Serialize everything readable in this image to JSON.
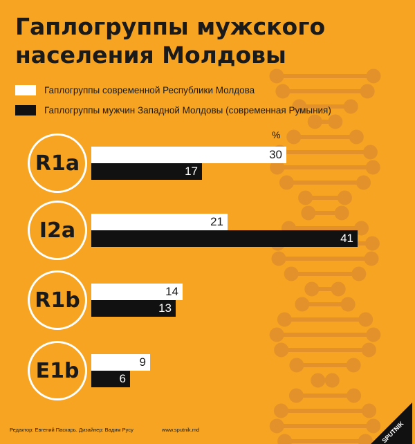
{
  "title_line1": "Гаплогруппы мужского",
  "title_line2": "населения Молдовы",
  "legend": [
    {
      "label": "Гаплогруппы современной Республики Молдова",
      "color": "#ffffff"
    },
    {
      "label": "Гаплогруппы мужчин Западной Молдовы (современная Румыния)",
      "color": "#111111"
    }
  ],
  "unit": "%",
  "chart_data": {
    "type": "bar",
    "orientation": "horizontal",
    "categories": [
      "R1a",
      "I2a",
      "R1b",
      "E1b"
    ],
    "series": [
      {
        "name": "Гаплогруппы современной Республики Молдова",
        "color": "#ffffff",
        "values": [
          30,
          21,
          14,
          9
        ]
      },
      {
        "name": "Гаплогруппы мужчин Западной Молдовы (современная Румыния)",
        "color": "#111111",
        "values": [
          17,
          41,
          13,
          6
        ]
      }
    ],
    "data_labels": true
  },
  "footer": {
    "credits": "Редактор: Евгений Паскарь. Дизайнер: Вадим Русу",
    "site": "www.sputnik.md",
    "logo_text": "SPUTNIK"
  },
  "colors": {
    "background": "#f6a421",
    "dna": "#e8952a"
  }
}
